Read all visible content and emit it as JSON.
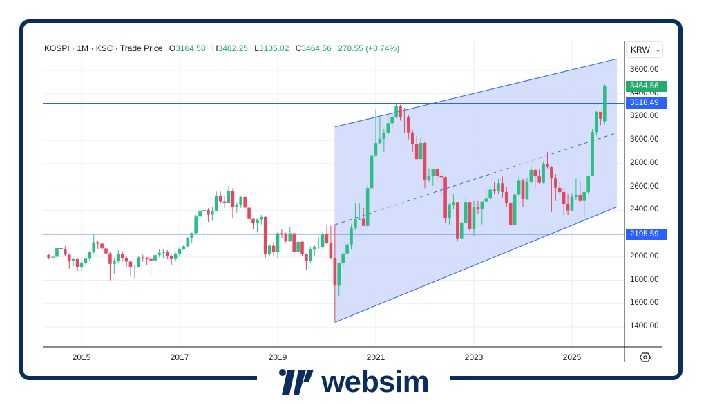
{
  "legend": {
    "symbol": "KOSPI",
    "interval": "1M",
    "exchange": "KSC",
    "type": "Trade Price",
    "open_label": "O",
    "open": "3164.58",
    "high_label": "H",
    "high": "3482.25",
    "low_label": "L",
    "low": "3135.02",
    "close_label": "C",
    "close": "3464.56",
    "change": "278.55 (+8.74%)"
  },
  "currency": {
    "value": "KRW",
    "icon": "chevron-down-icon"
  },
  "price_axis": {
    "ticks": [
      "3600.00",
      "3400.00",
      "3200.00",
      "3000.00",
      "2800.00",
      "2600.00",
      "2400.00",
      "2000.00",
      "1800.00",
      "1600.00",
      "1400.00"
    ],
    "last_price_tag": "3464.56",
    "hline_upper_tag": "3318.49",
    "hline_lower_tag": "2195.59"
  },
  "time_axis": {
    "ticks": [
      "2015",
      "2017",
      "2019",
      "2021",
      "2023",
      "2025"
    ]
  },
  "settings_icon": "gear-icon",
  "colors": {
    "up": "#2ebd85",
    "down": "#e5475f",
    "channel_line": "#2962ff",
    "channel_fill": "#d0dcfb",
    "hline": "#2962ff",
    "tag_green": "#22ab6b",
    "tag_blue": "#2962ff",
    "frame": "#0b2c5e",
    "grid": "#eeeef1"
  },
  "brand": {
    "name": "websim"
  },
  "chart_data": {
    "type": "candlestick",
    "title": "KOSPI · 1M · KSC · Trade Price",
    "xlabel": "",
    "ylabel": "KRW",
    "ylim": [
      1200,
      3700
    ],
    "x_range": [
      "2014-05",
      "2025-09"
    ],
    "grid": true,
    "last": {
      "open": 3164.58,
      "high": 3482.25,
      "low": 3135.02,
      "close": 3464.56,
      "change": 278.55,
      "change_pct": 8.74
    },
    "horizontal_lines": [
      3318.49,
      2195.59
    ],
    "parallel_channel": {
      "start": {
        "date": "2020-03",
        "price": 1439
      },
      "upper_start": 3115,
      "end_x": "2025-12",
      "upper_end": 3700,
      "lower_end": 2430,
      "midline": true
    },
    "candles": [
      [
        "2014-05",
        2017,
        2027,
        1980,
        1994
      ],
      [
        "2014-06",
        1994,
        2020,
        1950,
        2002
      ],
      [
        "2014-07",
        2002,
        2093,
        1990,
        2076
      ],
      [
        "2014-08",
        2076,
        2083,
        2030,
        2068
      ],
      [
        "2014-09",
        2068,
        2092,
        2010,
        2020
      ],
      [
        "2014-10",
        2020,
        2030,
        1900,
        1964
      ],
      [
        "2014-11",
        1964,
        1990,
        1920,
        1981
      ],
      [
        "2014-12",
        1981,
        1990,
        1880,
        1916
      ],
      [
        "2015-01",
        1916,
        1964,
        1880,
        1949
      ],
      [
        "2015-02",
        1949,
        1990,
        1940,
        1985
      ],
      [
        "2015-03",
        1985,
        2050,
        1970,
        2041
      ],
      [
        "2015-04",
        2041,
        2190,
        2030,
        2127
      ],
      [
        "2015-05",
        2127,
        2140,
        2070,
        2115
      ],
      [
        "2015-06",
        2115,
        2130,
        2040,
        2074
      ],
      [
        "2015-07",
        2074,
        2090,
        1990,
        2030
      ],
      [
        "2015-08",
        2030,
        2040,
        1800,
        1941
      ],
      [
        "2015-09",
        1941,
        1990,
        1850,
        1963
      ],
      [
        "2015-10",
        1963,
        2060,
        1950,
        2029
      ],
      [
        "2015-11",
        2029,
        2050,
        1960,
        1991
      ],
      [
        "2015-12",
        1991,
        2010,
        1910,
        1961
      ],
      [
        "2016-01",
        1961,
        1960,
        1830,
        1912
      ],
      [
        "2016-02",
        1912,
        1930,
        1820,
        1916
      ],
      [
        "2016-03",
        1916,
        2010,
        1910,
        1996
      ],
      [
        "2016-04",
        1996,
        2020,
        1960,
        1994
      ],
      [
        "2016-05",
        1994,
        2000,
        1930,
        1983
      ],
      [
        "2016-06",
        1983,
        2000,
        1830,
        1970
      ],
      [
        "2016-07",
        1970,
        2030,
        1960,
        2016
      ],
      [
        "2016-08",
        2016,
        2070,
        2000,
        2035
      ],
      [
        "2016-09",
        2035,
        2070,
        1990,
        2043
      ],
      [
        "2016-10",
        2043,
        2060,
        1980,
        2008
      ],
      [
        "2016-11",
        2008,
        2020,
        1930,
        1983
      ],
      [
        "2016-12",
        1983,
        2040,
        1960,
        2026
      ],
      [
        "2017-01",
        2026,
        2090,
        2000,
        2067
      ],
      [
        "2017-02",
        2067,
        2100,
        2060,
        2091
      ],
      [
        "2017-03",
        2091,
        2170,
        2080,
        2160
      ],
      [
        "2017-04",
        2160,
        2210,
        2120,
        2205
      ],
      [
        "2017-05",
        2205,
        2360,
        2200,
        2347
      ],
      [
        "2017-06",
        2347,
        2400,
        2330,
        2391
      ],
      [
        "2017-07",
        2391,
        2450,
        2380,
        2402
      ],
      [
        "2017-08",
        2402,
        2420,
        2300,
        2363
      ],
      [
        "2017-09",
        2363,
        2430,
        2310,
        2394
      ],
      [
        "2017-10",
        2394,
        2560,
        2390,
        2523
      ],
      [
        "2017-11",
        2523,
        2560,
        2460,
        2476
      ],
      [
        "2017-12",
        2476,
        2520,
        2420,
        2467
      ],
      [
        "2018-01",
        2467,
        2610,
        2460,
        2566
      ],
      [
        "2018-02",
        2566,
        2590,
        2330,
        2427
      ],
      [
        "2018-03",
        2427,
        2470,
        2380,
        2445
      ],
      [
        "2018-04",
        2445,
        2520,
        2420,
        2515
      ],
      [
        "2018-05",
        2515,
        2520,
        2410,
        2423
      ],
      [
        "2018-06",
        2423,
        2470,
        2290,
        2326
      ],
      [
        "2018-07",
        2326,
        2330,
        2240,
        2295
      ],
      [
        "2018-08",
        2295,
        2330,
        2210,
        2322
      ],
      [
        "2018-09",
        2322,
        2360,
        2280,
        2343
      ],
      [
        "2018-10",
        2343,
        2350,
        1990,
        2029
      ],
      [
        "2018-11",
        2029,
        2110,
        2010,
        2096
      ],
      [
        "2018-12",
        2096,
        2130,
        2010,
        2041
      ],
      [
        "2019-01",
        2041,
        2220,
        1990,
        2204
      ],
      [
        "2019-02",
        2204,
        2240,
        2160,
        2195
      ],
      [
        "2019-03",
        2195,
        2210,
        2120,
        2140
      ],
      [
        "2019-04",
        2140,
        2260,
        2130,
        2203
      ],
      [
        "2019-05",
        2203,
        2210,
        2010,
        2041
      ],
      [
        "2019-06",
        2041,
        2140,
        2010,
        2130
      ],
      [
        "2019-07",
        2130,
        2140,
        2010,
        2024
      ],
      [
        "2019-08",
        2024,
        2030,
        1890,
        1968
      ],
      [
        "2019-09",
        1968,
        2090,
        1950,
        2063
      ],
      [
        "2019-10",
        2063,
        2100,
        2010,
        2083
      ],
      [
        "2019-11",
        2083,
        2170,
        2070,
        2087
      ],
      [
        "2019-12",
        2087,
        2210,
        2070,
        2198
      ],
      [
        "2020-01",
        2198,
        2280,
        2110,
        2119
      ],
      [
        "2020-02",
        2119,
        2270,
        1980,
        1987
      ],
      [
        "2020-03",
        1987,
        2280,
        1439,
        1754
      ],
      [
        "2020-04",
        1754,
        1950,
        1660,
        1947
      ],
      [
        "2020-05",
        1947,
        2050,
        1900,
        2030
      ],
      [
        "2020-06",
        2030,
        2250,
        2030,
        2108
      ],
      [
        "2020-07",
        2108,
        2280,
        2070,
        2249
      ],
      [
        "2020-08",
        2249,
        2460,
        2230,
        2326
      ],
      [
        "2020-09",
        2326,
        2460,
        2320,
        2327
      ],
      [
        "2020-10",
        2327,
        2420,
        2270,
        2267
      ],
      [
        "2020-11",
        2267,
        2620,
        2260,
        2591
      ],
      [
        "2020-12",
        2591,
        2880,
        2580,
        2873
      ],
      [
        "2021-01",
        2873,
        3266,
        2860,
        2976
      ],
      [
        "2021-02",
        2976,
        3200,
        2970,
        3013
      ],
      [
        "2021-03",
        3013,
        3100,
        2900,
        3061
      ],
      [
        "2021-04",
        3061,
        3220,
        3040,
        3147
      ],
      [
        "2021-05",
        3147,
        3250,
        3100,
        3203
      ],
      [
        "2021-06",
        3203,
        3317,
        3190,
        3296
      ],
      [
        "2021-07",
        3296,
        3305,
        3170,
        3202
      ],
      [
        "2021-08",
        3202,
        3280,
        3060,
        3199
      ],
      [
        "2021-09",
        3199,
        3220,
        3010,
        3068
      ],
      [
        "2021-10",
        3068,
        3090,
        2900,
        2971
      ],
      [
        "2021-11",
        2971,
        3040,
        2830,
        2840
      ],
      [
        "2021-12",
        2840,
        3020,
        2840,
        2977
      ],
      [
        "2022-01",
        2977,
        2990,
        2590,
        2663
      ],
      [
        "2022-02",
        2663,
        2760,
        2640,
        2699
      ],
      [
        "2022-03",
        2699,
        2740,
        2610,
        2757
      ],
      [
        "2022-04",
        2757,
        2760,
        2650,
        2695
      ],
      [
        "2022-05",
        2695,
        2720,
        2530,
        2685
      ],
      [
        "2022-06",
        2685,
        2690,
        2290,
        2332
      ],
      [
        "2022-07",
        2332,
        2460,
        2280,
        2451
      ],
      [
        "2022-08",
        2451,
        2540,
        2410,
        2472
      ],
      [
        "2022-09",
        2472,
        2470,
        2134,
        2155
      ],
      [
        "2022-10",
        2155,
        2300,
        2180,
        2293
      ],
      [
        "2022-11",
        2293,
        2500,
        2290,
        2472
      ],
      [
        "2022-12",
        2472,
        2480,
        2220,
        2236
      ],
      [
        "2023-01",
        2236,
        2480,
        2180,
        2425
      ],
      [
        "2023-02",
        2425,
        2480,
        2370,
        2412
      ],
      [
        "2023-03",
        2412,
        2460,
        2280,
        2476
      ],
      [
        "2023-04",
        2476,
        2580,
        2460,
        2501
      ],
      [
        "2023-05",
        2501,
        2610,
        2480,
        2577
      ],
      [
        "2023-06",
        2577,
        2640,
        2540,
        2564
      ],
      [
        "2023-07",
        2564,
        2670,
        2540,
        2632
      ],
      [
        "2023-08",
        2632,
        2690,
        2510,
        2556
      ],
      [
        "2023-09",
        2556,
        2600,
        2430,
        2465
      ],
      [
        "2023-10",
        2465,
        2470,
        2270,
        2277
      ],
      [
        "2023-11",
        2277,
        2540,
        2300,
        2535
      ],
      [
        "2023-12",
        2535,
        2690,
        2530,
        2655
      ],
      [
        "2024-01",
        2655,
        2670,
        2430,
        2497
      ],
      [
        "2024-02",
        2497,
        2680,
        2490,
        2642
      ],
      [
        "2024-03",
        2642,
        2780,
        2620,
        2747
      ],
      [
        "2024-04",
        2747,
        2760,
        2590,
        2692
      ],
      [
        "2024-05",
        2692,
        2750,
        2630,
        2636
      ],
      [
        "2024-06",
        2636,
        2820,
        2630,
        2797
      ],
      [
        "2024-07",
        2797,
        2900,
        2760,
        2770
      ],
      [
        "2024-08",
        2770,
        2780,
        2386,
        2674
      ],
      [
        "2024-09",
        2674,
        2710,
        2480,
        2593
      ],
      [
        "2024-10",
        2593,
        2640,
        2540,
        2556
      ],
      [
        "2024-11",
        2556,
        2590,
        2360,
        2455
      ],
      [
        "2024-12",
        2455,
        2540,
        2360,
        2399
      ],
      [
        "2025-01",
        2399,
        2550,
        2390,
        2517
      ],
      [
        "2025-02",
        2517,
        2670,
        2490,
        2532
      ],
      [
        "2025-03",
        2532,
        2650,
        2460,
        2481
      ],
      [
        "2025-04",
        2481,
        2570,
        2285,
        2556
      ],
      [
        "2025-05",
        2556,
        2700,
        2540,
        2697
      ],
      [
        "2025-06",
        2697,
        3100,
        2700,
        3071
      ],
      [
        "2025-07",
        3071,
        3255,
        3040,
        3245
      ],
      [
        "2025-08",
        3245,
        3230,
        3130,
        3186
      ],
      [
        "2025-09",
        3164.58,
        3482.25,
        3135.02,
        3464.56
      ]
    ]
  }
}
